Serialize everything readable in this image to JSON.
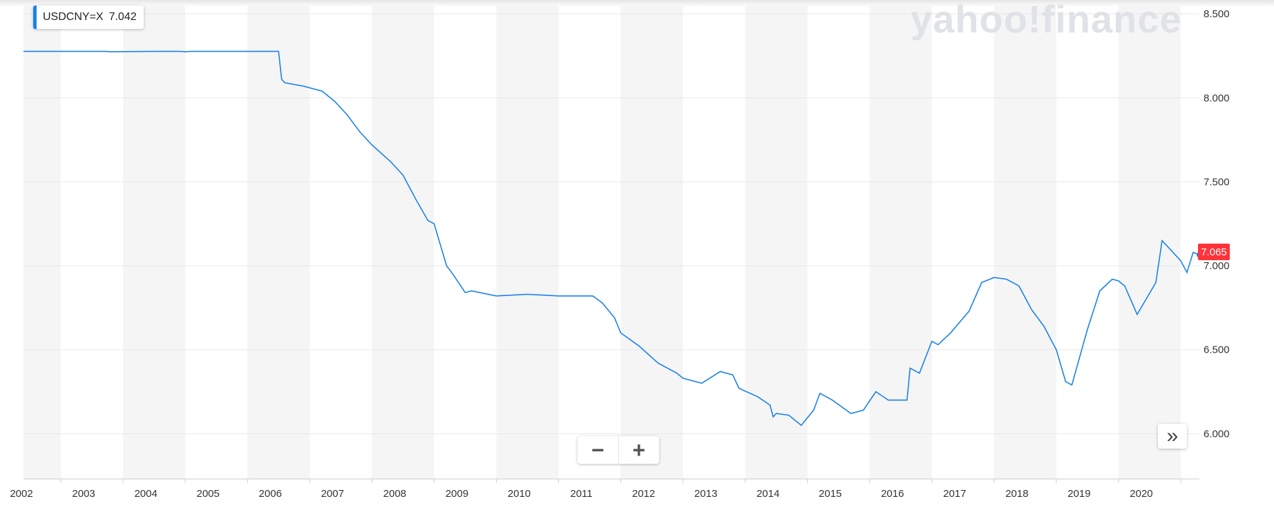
{
  "legend": {
    "symbol": "USDCNY=X",
    "value": "7.042"
  },
  "watermark": "yahoo!finance",
  "price_tag": "7.065",
  "controls": {
    "zoom_out": "−",
    "zoom_in": "+",
    "expand": "»"
  },
  "colors": {
    "line": "#1a82e8",
    "price_tag": "#ff333a",
    "band": "#f5f5f5"
  },
  "chart_data": {
    "type": "line",
    "series": [
      {
        "x": [
          2001.4,
          2002.5,
          2002.7,
          2002.8,
          2003.5,
          2003.9,
          2004.0,
          2004.1,
          2005.2,
          2005.5,
          2005.55,
          2005.6,
          2005.9,
          2006.2,
          2006.4,
          2006.6,
          2006.8,
          2007.0,
          2007.3,
          2007.5,
          2007.7,
          2007.9,
          2008.0,
          2008.2,
          2008.3,
          2008.5,
          2008.6,
          2009.0,
          2009.5,
          2010.0,
          2010.4,
          2010.55,
          2010.7,
          2010.9,
          2011.0,
          2011.3,
          2011.6,
          2011.9,
          2012.0,
          2012.3,
          2012.6,
          2012.8,
          2012.9,
          2013.2,
          2013.4,
          2013.45,
          2013.5,
          2013.7,
          2013.9,
          2014.1,
          2014.2,
          2014.4,
          2014.7,
          2014.9,
          2015.1,
          2015.3,
          2015.6,
          2015.65,
          2015.8,
          2016.0,
          2016.1,
          2016.3,
          2016.6,
          2016.8,
          2017.0,
          2017.2,
          2017.4,
          2017.6,
          2017.8,
          2018.0,
          2018.15,
          2018.25,
          2018.5,
          2018.7,
          2018.9,
          2019.0,
          2019.1,
          2019.3,
          2019.6,
          2019.7,
          2019.8,
          2020.0,
          2020.1,
          2020.2,
          2020.3
        ],
        "y": [
          8.277,
          8.277,
          8.277,
          8.275,
          8.277,
          8.277,
          8.275,
          8.277,
          8.277,
          8.277,
          8.11,
          8.09,
          8.07,
          8.04,
          7.98,
          7.9,
          7.8,
          7.72,
          7.62,
          7.54,
          7.4,
          7.27,
          7.25,
          7.0,
          6.95,
          6.84,
          6.85,
          6.82,
          6.83,
          6.82,
          6.82,
          6.82,
          6.78,
          6.69,
          6.6,
          6.52,
          6.42,
          6.36,
          6.33,
          6.3,
          6.37,
          6.35,
          6.27,
          6.22,
          6.17,
          6.1,
          6.12,
          6.11,
          6.05,
          6.14,
          6.24,
          6.2,
          6.12,
          6.14,
          6.25,
          6.2,
          6.2,
          6.39,
          6.36,
          6.55,
          6.53,
          6.6,
          6.73,
          6.9,
          6.93,
          6.92,
          6.88,
          6.74,
          6.64,
          6.5,
          6.31,
          6.29,
          6.62,
          6.85,
          6.92,
          6.91,
          6.88,
          6.71,
          6.9,
          7.15,
          7.11,
          7.03,
          6.96,
          7.08,
          7.065
        ]
      }
    ],
    "x_ticks": [
      "2002",
      "2003",
      "2004",
      "2005",
      "2006",
      "2007",
      "2008",
      "2009",
      "2010",
      "2011",
      "2012",
      "2013",
      "2014",
      "2015",
      "2016",
      "2017",
      "2018",
      "2019",
      "2020"
    ],
    "y_ticks": [
      "6.000",
      "6.500",
      "7.000",
      "7.500",
      "8.000",
      "8.500"
    ],
    "xlim": [
      2001.4,
      2020.3
    ],
    "ylim": [
      5.73,
      8.55
    ]
  }
}
